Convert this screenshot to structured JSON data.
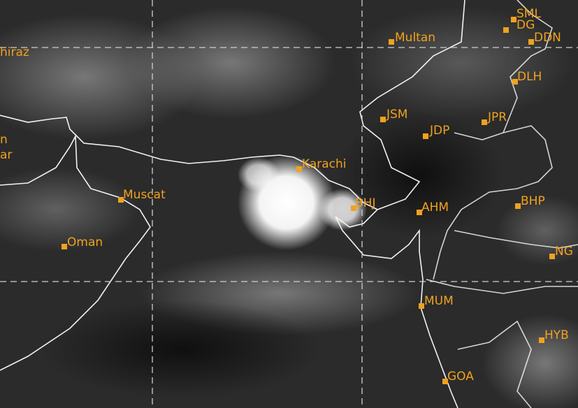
{
  "places": [
    {
      "label": "hiraz"
    },
    {
      "label": "n"
    },
    {
      "label": "ar"
    },
    {
      "label": "Multan"
    },
    {
      "label": "SML"
    },
    {
      "label": "DG"
    },
    {
      "label": "DDN"
    },
    {
      "label": "DLH"
    },
    {
      "label": "JSM"
    },
    {
      "label": "JDP"
    },
    {
      "label": "JPR"
    },
    {
      "label": "Karachi"
    },
    {
      "label": "Muscat"
    },
    {
      "label": "Oman"
    },
    {
      "label": "BHJ"
    },
    {
      "label": "AHM"
    },
    {
      "label": "BHP"
    },
    {
      "label": "NG"
    },
    {
      "label": "MUM"
    },
    {
      "label": "HYB"
    },
    {
      "label": "GOA"
    }
  ]
}
